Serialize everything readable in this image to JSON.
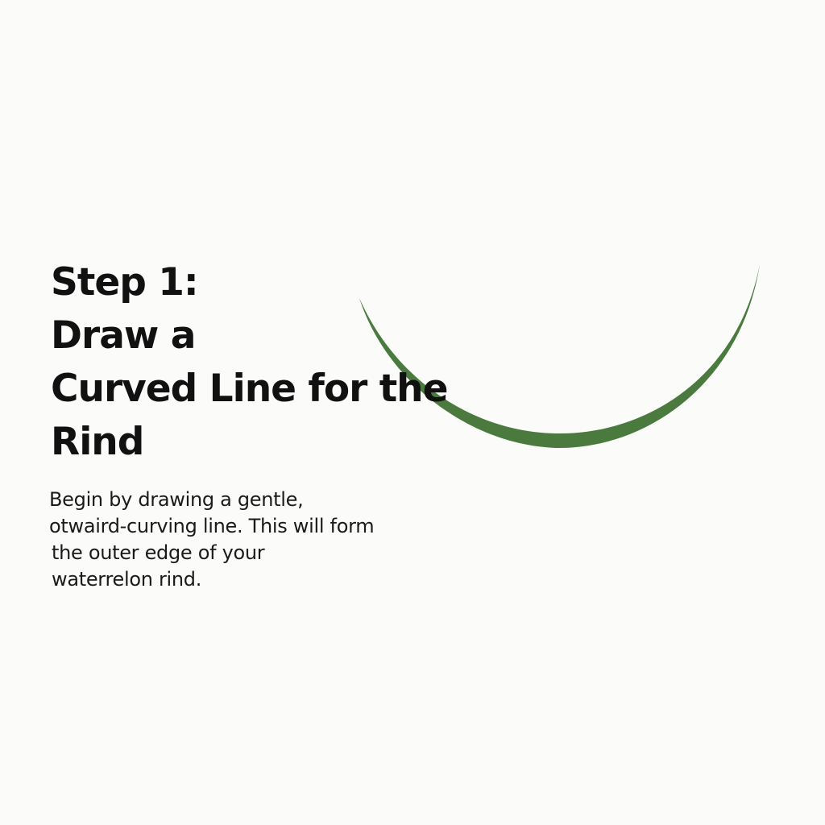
{
  "step": {
    "title_lines": [
      "Step 1:",
      "Draw a",
      "Curved Line for the",
      "Rind"
    ],
    "description_lines": [
      "Begin by drawing a gentle,",
      "otwaird-curving line. This will form",
      "the outer edge of your",
      "waterrelon rind."
    ]
  },
  "colors": {
    "rind": "#4a7a3e",
    "background": "#fbfbfa",
    "text": "#111111"
  }
}
